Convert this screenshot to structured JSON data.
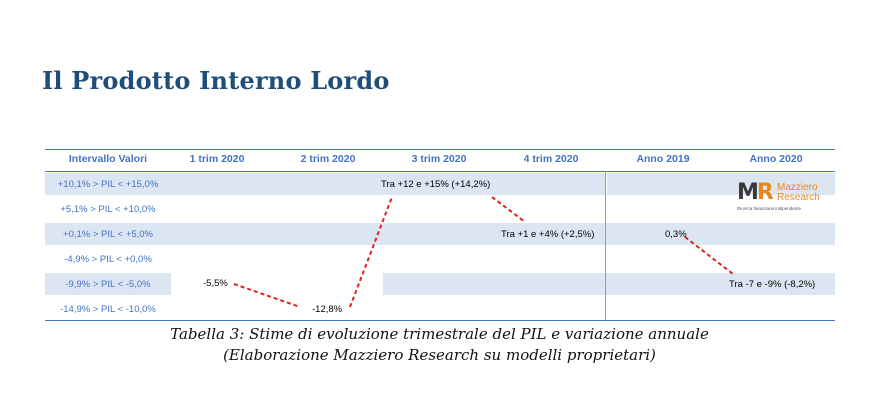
{
  "title": "Il Prodotto Interno Lordo",
  "table": {
    "headers": [
      "Intervallo Valori",
      "1 trim 2020",
      "2 trim 2020",
      "3 trim 2020",
      "4 trim 2020",
      "Anno 2019",
      "Anno 2020"
    ],
    "rows": [
      "+10,1% > PIL < +15,0%",
      "+5,1% > PIL < +10,0%",
      "+0,1% > PIL < +5,0%",
      "-4,9% > PIL < +0,0%",
      "-9,9% > PIL < -5,0%",
      "-14,9% > PIL < -10,0%"
    ],
    "values": {
      "q1": "-5,5%",
      "q2": "-12,8%",
      "q3": "Tra +12 e +15% (+14,2%)",
      "q4": "Tra +1 e +4% (+2,5%)",
      "y2019": "0,3%",
      "y2020": "Tra -7 e -9% (-8,2%)"
    },
    "colors": {
      "header": "#4472c4",
      "band": "#dce6f2",
      "trend": "#e02020"
    }
  },
  "logo": {
    "mark_m": "M",
    "mark_r": "R",
    "name_line1": "Mazziero",
    "name_line2": "Research",
    "tagline": "Ricerca finanziaria indipendente"
  },
  "caption": {
    "line1": "Tabella 3: Stime di evoluzione trimestrale del PIL e variazione annuale",
    "line2": "(Elaborazione Mazziero Research su modelli proprietari)"
  }
}
